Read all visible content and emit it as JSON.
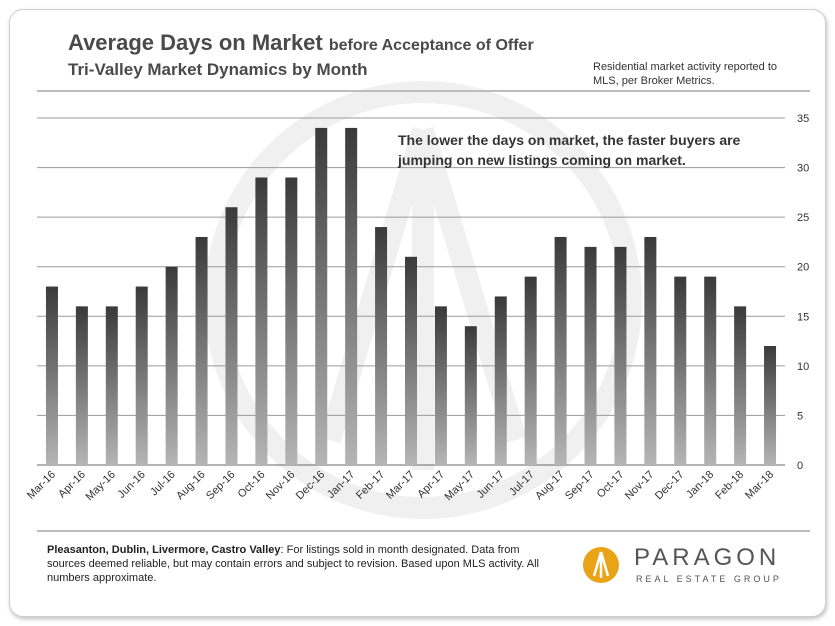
{
  "header": {
    "title": "Average Days on Market",
    "title_suffix": "before Acceptance of Offer",
    "subtitle": "Tri-Valley  Market Dynamics by Month",
    "source_note": "Residential market activity reported to MLS, per Broker Metrics."
  },
  "annotation": "The lower the days on market, the faster buyers are jumping  on new listings  coming  on market.",
  "footnote": {
    "bold": "Pleasanton, Dublin, Livermore, Castro Valley",
    "text": ": For listings sold in month designated. Data from sources  deemed reliable, but may contain errors and subject to revision. Based upon MLS activity. All numbers approximate."
  },
  "logo": {
    "name": "PARAGON",
    "tagline": "REAL ESTATE GROUP"
  },
  "colors": {
    "bar_top": "#3a3a3a",
    "bar_bottom": "#b5b5b5",
    "grid": "#9a9a9a",
    "logo_accent": "#e8a317"
  },
  "chart_data": {
    "type": "bar",
    "categories": [
      "Mar-16",
      "Apr-16",
      "May-16",
      "Jun-16",
      "Jul-16",
      "Aug-16",
      "Sep-16",
      "Oct-16",
      "Nov-16",
      "Dec-16",
      "Jan-17",
      "Feb-17",
      "Mar-17",
      "Apr-17",
      "May-17",
      "Jun-17",
      "Jul-17",
      "Aug-17",
      "Sep-17",
      "Oct-17",
      "Nov-17",
      "Dec-17",
      "Jan-18",
      "Feb-18",
      "Mar-18"
    ],
    "values": [
      18,
      16,
      16,
      18,
      20,
      23,
      26,
      29,
      29,
      34,
      34,
      24,
      21,
      16,
      14,
      17,
      19,
      23,
      22,
      22,
      23,
      19,
      19,
      16,
      12
    ],
    "ylim": [
      0,
      35
    ],
    "yticks": [
      "0",
      "5",
      "10",
      "15",
      "20",
      "25",
      "30",
      "35"
    ],
    "y_axis_side": "right",
    "grid": true,
    "legend": "none"
  }
}
